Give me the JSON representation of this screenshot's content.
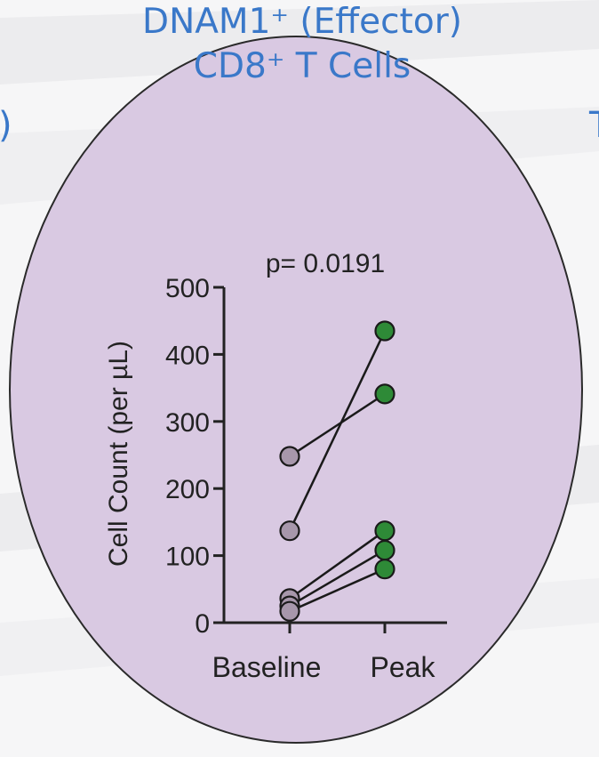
{
  "slide": {
    "left_fragment": ")",
    "right_fragment": "T"
  },
  "chart_data": {
    "type": "line",
    "title_line_1": "DNAM1⁺ (Effector)",
    "title_line_2": "CD8⁺ T Cells",
    "annotation": "p= 0.0191",
    "xlabel": "",
    "ylabel": "Cell Count (per µL)",
    "categories": [
      "Baseline",
      "Peak"
    ],
    "ylim": [
      0,
      500
    ],
    "yticks": [
      0,
      100,
      200,
      300,
      400,
      500
    ],
    "grid": false,
    "legend": "none",
    "subjects": [
      {
        "values": [
          248,
          341
        ]
      },
      {
        "values": [
          137,
          435
        ]
      },
      {
        "values": [
          36,
          137
        ]
      },
      {
        "values": [
          25,
          108
        ]
      },
      {
        "values": [
          17,
          80
        ]
      }
    ],
    "colors": {
      "baseline_marker": "#a797ab",
      "peak_marker": "#2e8a37",
      "line": "#1a1a1a",
      "title": "#3a78c9",
      "oval_fill": "#d9c9e2"
    }
  }
}
